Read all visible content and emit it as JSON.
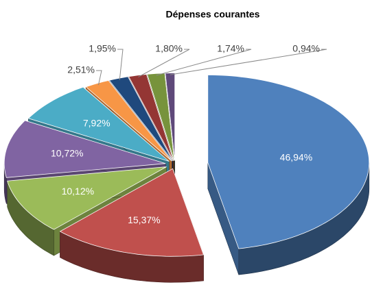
{
  "chart_data": {
    "type": "pie",
    "title": "Dépenses courantes",
    "values": [
      46.94,
      15.37,
      10.12,
      10.72,
      7.92,
      2.51,
      1.95,
      1.8,
      1.74,
      0.94
    ],
    "value_labels": [
      "46,94%",
      "15,37%",
      "10,12%",
      "10,72%",
      "7,92%",
      "2,51%",
      "1,95%",
      "1,80%",
      "1,74%",
      "0,94%"
    ],
    "colors": [
      "#4f81bd",
      "#c0504d",
      "#9bbb59",
      "#8064a2",
      "#4bacc6",
      "#f79646",
      "#1f497d",
      "#943634",
      "#77933c",
      "#5f497a"
    ]
  }
}
